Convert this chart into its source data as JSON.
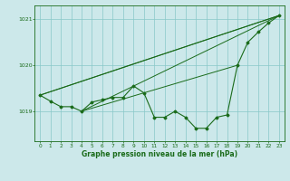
{
  "title": "Graphe pression niveau de la mer (hPa)",
  "bg_color": "#cce8ea",
  "grid_color": "#88c8c8",
  "line_color": "#1a6b1a",
  "x_ticks": [
    0,
    1,
    2,
    3,
    4,
    5,
    6,
    7,
    8,
    9,
    10,
    11,
    12,
    13,
    14,
    15,
    16,
    17,
    18,
    19,
    20,
    21,
    22,
    23
  ],
  "y_ticks": [
    1019,
    1020,
    1021
  ],
  "ylim": [
    1018.35,
    1021.3
  ],
  "xlim": [
    -0.5,
    23.5
  ],
  "main_series": [
    [
      0,
      1019.35
    ],
    [
      1,
      1019.22
    ],
    [
      2,
      1019.1
    ],
    [
      3,
      1019.1
    ],
    [
      4,
      1019.0
    ],
    [
      5,
      1019.2
    ],
    [
      6,
      1019.25
    ],
    [
      7,
      1019.3
    ],
    [
      8,
      1019.3
    ],
    [
      9,
      1019.55
    ],
    [
      10,
      1019.4
    ],
    [
      11,
      1018.87
    ],
    [
      12,
      1018.87
    ],
    [
      13,
      1019.0
    ],
    [
      14,
      1018.87
    ],
    [
      15,
      1018.63
    ],
    [
      16,
      1018.63
    ],
    [
      17,
      1018.87
    ],
    [
      18,
      1018.92
    ],
    [
      19,
      1020.0
    ],
    [
      20,
      1020.5
    ],
    [
      21,
      1020.72
    ],
    [
      22,
      1020.92
    ],
    [
      23,
      1021.08
    ]
  ],
  "extra_lines": [
    [
      [
        0,
        1019.35
      ],
      [
        23,
        1021.08
      ]
    ],
    [
      [
        0,
        1019.35
      ],
      [
        23,
        1021.08
      ]
    ],
    [
      [
        4,
        1019.0
      ],
      [
        23,
        1021.08
      ]
    ],
    [
      [
        4,
        1019.0
      ],
      [
        19,
        1020.0
      ]
    ]
  ]
}
